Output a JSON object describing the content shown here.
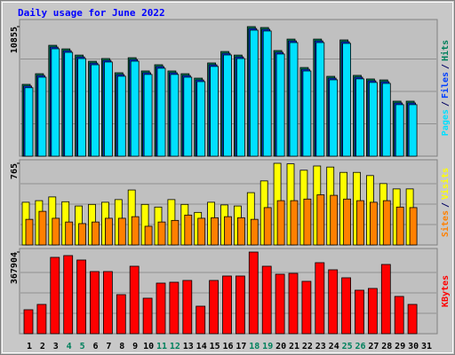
{
  "title": "Daily usage for June 2022",
  "legend_separator": "/",
  "chart_data": [
    {
      "type": "bar",
      "ylim": [
        0,
        10855
      ],
      "yticks": [
        10855
      ],
      "series": [
        {
          "name": "Hits",
          "color": "#00805c",
          "values": [
            6020,
            6910,
            9290,
            8990,
            8470,
            7950,
            8180,
            6990,
            8250,
            7140,
            7660,
            7140,
            6910,
            6540,
            7810,
            8770,
            8470,
            10855,
            10780,
            8850,
            9810,
            7430,
            9810,
            6690,
            9740,
            6770,
            6470,
            6390,
            4610,
            4610,
            null
          ]
        },
        {
          "name": "Files",
          "color": "#0040ff",
          "values": [
            5880,
            6760,
            9140,
            8840,
            8320,
            7800,
            8030,
            6840,
            8100,
            6990,
            7510,
            6990,
            6760,
            6390,
            7660,
            8620,
            8320,
            10700,
            10630,
            8700,
            9660,
            7280,
            9660,
            6540,
            9590,
            6620,
            6320,
            6240,
            4460,
            4460,
            null
          ]
        },
        {
          "name": "Pages",
          "color": "#00e0ff",
          "values": [
            5740,
            6620,
            9000,
            8700,
            8180,
            7660,
            7890,
            6700,
            7960,
            6850,
            7370,
            6850,
            6620,
            6250,
            7520,
            8480,
            8180,
            10560,
            10490,
            8560,
            9520,
            7140,
            9520,
            6400,
            9450,
            6480,
            6180,
            6100,
            4320,
            4320,
            null
          ]
        }
      ]
    },
    {
      "type": "bar",
      "ylim": [
        0,
        765
      ],
      "yticks": [
        765
      ],
      "series": [
        {
          "name": "Visits",
          "color": "#ffff00",
          "values": [
            400,
            415,
            450,
            405,
            365,
            380,
            400,
            425,
            515,
            380,
            355,
            425,
            380,
            305,
            400,
            375,
            365,
            490,
            600,
            765,
            760,
            700,
            740,
            730,
            680,
            680,
            650,
            575,
            525,
            525,
            null
          ]
        },
        {
          "name": "Sites",
          "color": "#ff8000",
          "values": [
            240,
            315,
            250,
            215,
            200,
            215,
            250,
            250,
            265,
            175,
            215,
            230,
            280,
            250,
            255,
            265,
            255,
            240,
            350,
            415,
            415,
            430,
            470,
            465,
            430,
            415,
            400,
            415,
            355,
            350,
            null
          ]
        }
      ]
    },
    {
      "type": "bar",
      "ylim": [
        0,
        367904
      ],
      "yticks": [
        367904
      ],
      "categories": [
        "1",
        "2",
        "3",
        "4",
        "5",
        "6",
        "7",
        "8",
        "9",
        "10",
        "11",
        "12",
        "13",
        "14",
        "15",
        "16",
        "17",
        "18",
        "19",
        "20",
        "21",
        "22",
        "23",
        "24",
        "25",
        "26",
        "27",
        "28",
        "29",
        "30",
        "31"
      ],
      "category_colors": [
        "#000000",
        "#000000",
        "#000000",
        "#00805c",
        "#00805c",
        "#000000",
        "#000000",
        "#000000",
        "#000000",
        "#000000",
        "#00805c",
        "#00805c",
        "#000000",
        "#000000",
        "#000000",
        "#000000",
        "#000000",
        "#00805c",
        "#00805c",
        "#000000",
        "#000000",
        "#000000",
        "#000000",
        "#000000",
        "#00805c",
        "#00805c",
        "#000000",
        "#000000",
        "#000000",
        "#000000",
        "#000000"
      ],
      "series": [
        {
          "name": "KBytes",
          "color": "#ff0000",
          "values": [
            108000,
            132000,
            344000,
            352000,
            332000,
            280000,
            280000,
            176000,
            304000,
            160000,
            228000,
            232000,
            240000,
            124000,
            240000,
            260000,
            260000,
            367904,
            304000,
            268000,
            272000,
            236000,
            320000,
            288000,
            252000,
            196000,
            204000,
            312000,
            168000,
            132000,
            null
          ]
        }
      ]
    }
  ]
}
